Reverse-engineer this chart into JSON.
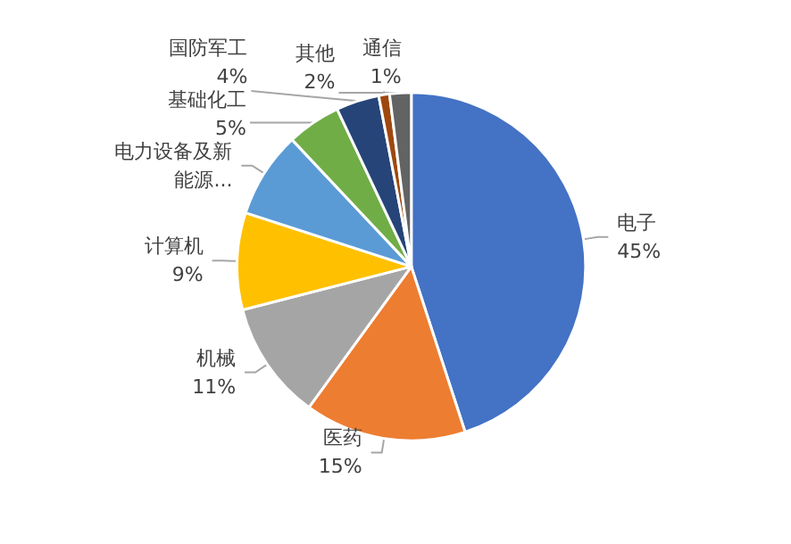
{
  "chart_data": {
    "type": "pie",
    "categories": [
      "电子",
      "医药",
      "机械",
      "计算机",
      "电力设备及新能源...",
      "基础化工",
      "国防军工",
      "通信",
      "其他"
    ],
    "values": [
      45,
      15,
      11,
      9,
      8,
      5,
      4,
      1,
      2
    ],
    "value_labels": [
      "45%",
      "15%",
      "11%",
      "9%",
      null,
      "5%",
      "4%",
      "1%",
      "2%"
    ],
    "colors": [
      "#4472c4",
      "#ed7d31",
      "#a5a5a5",
      "#ffc000",
      "#5b9bd5",
      "#70ad47",
      "#264478",
      "#9e480e",
      "#636363"
    ],
    "legend": false
  }
}
